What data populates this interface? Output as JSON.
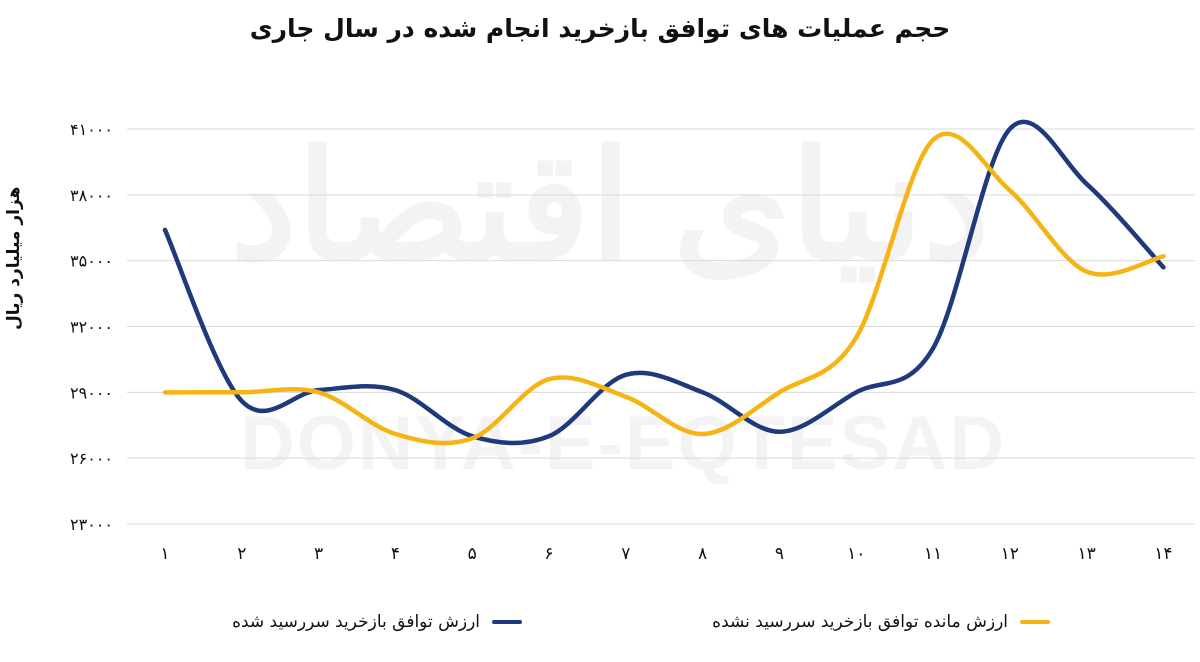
{
  "chart_data": {
    "type": "line",
    "title": "حجم عملیات های توافق بازخرید انجام شده در سال جاری",
    "xlabel": "",
    "ylabel": "هزار میلیارد ریال",
    "categories": [
      "1",
      "2",
      "3",
      "4",
      "5",
      "6",
      "7",
      "8",
      "9",
      "10",
      "11",
      "12",
      "13",
      "14"
    ],
    "x_tick_labels": [
      "۱",
      "۲",
      "۳",
      "۴",
      "۵",
      "۶",
      "۷",
      "۸",
      "۹",
      "۱۰",
      "۱۱",
      "۱۲",
      "۱۳",
      "۱۴"
    ],
    "y_ticks": [
      23000,
      26000,
      29000,
      32000,
      35000,
      38000,
      41000
    ],
    "y_tick_labels": [
      "۲۳۰۰۰",
      "۲۶۰۰۰",
      "۲۹۰۰۰",
      "۳۲۰۰۰",
      "۳۵۰۰۰",
      "۳۸۰۰۰",
      "۴۱۰۰۰"
    ],
    "ylim": [
      23000,
      41000
    ],
    "grid": true,
    "legend_position": "bottom",
    "series": [
      {
        "name": "ارزش توافق بازخرید سررسید شده",
        "color": "#1f3a7a",
        "values": [
          36400,
          28600,
          29100,
          29100,
          27000,
          27000,
          29800,
          29000,
          27200,
          29000,
          31000,
          41000,
          38500,
          34700
        ]
      },
      {
        "name": "ارزش مانده توافق بازخرید سررسید نشده",
        "color": "#f5b414",
        "values": [
          29000,
          29000,
          29000,
          27100,
          26900,
          29600,
          28800,
          27100,
          29000,
          31500,
          40500,
          38200,
          34500,
          35200
        ]
      }
    ]
  },
  "watermark": {
    "latin": "DONYA-E-EQTESAD",
    "arabic": "دنیای اقتصاد"
  }
}
